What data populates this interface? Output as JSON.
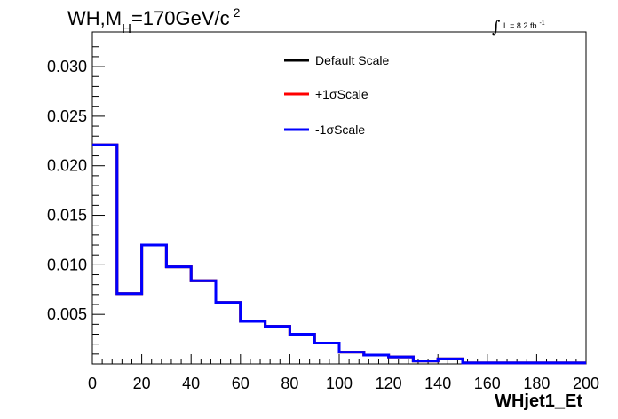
{
  "chart_data": {
    "type": "line",
    "title_parts": {
      "a": "WH,M",
      "sub": "H",
      "b": "=170GeV/c",
      "sup": "2"
    },
    "lumi": {
      "integral": "∫",
      "text": "L = 8.2 fb",
      "sup": "-1"
    },
    "xlabel": "WHjet1_Et",
    "ylabel": "",
    "xlim": [
      0,
      200
    ],
    "ylim": [
      0,
      0.0335
    ],
    "x_ticks": [
      "0",
      "20",
      "40",
      "60",
      "80",
      "100",
      "120",
      "140",
      "160",
      "180",
      "200"
    ],
    "y_ticks": [
      "0.005",
      "0.010",
      "0.015",
      "0.020",
      "0.025",
      "0.030"
    ],
    "bin_edges": [
      0,
      10,
      20,
      30,
      40,
      50,
      60,
      70,
      80,
      90,
      100,
      110,
      120,
      130,
      140,
      150,
      160,
      170,
      180,
      190,
      200
    ],
    "series": [
      {
        "name": "Default Scale",
        "color": "#000000",
        "values": [
          0.0221,
          0.0071,
          0.012,
          0.0098,
          0.0084,
          0.0062,
          0.0043,
          0.0038,
          0.003,
          0.0021,
          0.0012,
          0.0009,
          0.0007,
          0.0003,
          0.0005,
          0.0001,
          0.0001,
          0.0001,
          0.0001,
          0.0001
        ]
      },
      {
        "name": "+1σScale",
        "color": "#ff0000",
        "values": [
          0.0221,
          0.0071,
          0.012,
          0.0098,
          0.0084,
          0.0062,
          0.0043,
          0.0038,
          0.003,
          0.0021,
          0.0012,
          0.0009,
          0.0007,
          0.0003,
          0.0005,
          0.0001,
          0.0001,
          0.0001,
          0.0001,
          0.0001
        ]
      },
      {
        "name": "-1σScale",
        "color": "#0000ff",
        "values": [
          0.0221,
          0.0071,
          0.012,
          0.0098,
          0.0084,
          0.0062,
          0.0043,
          0.0038,
          0.003,
          0.0021,
          0.0012,
          0.0009,
          0.0007,
          0.0003,
          0.0005,
          0.0001,
          0.0001,
          0.0001,
          0.0001,
          0.0001
        ]
      }
    ],
    "legend_position": "top-right",
    "grid": false
  }
}
